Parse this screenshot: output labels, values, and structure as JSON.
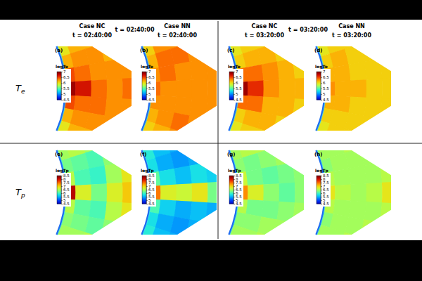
{
  "figure": {
    "row_labels": [
      {
        "symbol": "T",
        "subscript": "e"
      },
      {
        "symbol": "T",
        "subscript": "p"
      }
    ],
    "groups": [
      {
        "time_label": "t = 02:40:00",
        "columns": [
          {
            "case": "Case NC",
            "time": "t = 02:40:00"
          },
          {
            "case": "Case NN",
            "time": "t = 02:40:00"
          }
        ]
      },
      {
        "time_label": "t = 03:20:00",
        "columns": [
          {
            "case": "Case NC",
            "time": "t = 03:20:00"
          },
          {
            "case": "Case NN",
            "time": "t = 03:20:00"
          }
        ]
      }
    ]
  },
  "chart_data": [
    {
      "type": "heatmap",
      "title": "(a)",
      "colorbar": {
        "label": "logTe",
        "range": [
          4.5,
          7
        ],
        "ticks": [
          4.5,
          5,
          5.5,
          6,
          6.5,
          7
        ]
      },
      "values": [
        [
          6.0,
          6.2,
          6.2,
          6.3,
          6.2,
          6.2
        ],
        [
          6.2,
          6.3,
          6.3,
          6.2,
          6.3,
          6.2
        ],
        [
          6.5,
          6.4,
          6.3,
          6.3,
          6.3,
          6.2
        ],
        [
          6.9,
          6.7,
          6.4,
          6.3,
          6.4,
          6.3
        ],
        [
          6.5,
          6.4,
          6.4,
          6.3,
          6.3,
          6.2
        ],
        [
          6.2,
          6.3,
          6.3,
          6.3,
          6.2,
          6.2
        ],
        [
          6.0,
          6.2,
          6.2,
          6.2,
          6.2,
          6.1
        ]
      ]
    },
    {
      "type": "heatmap",
      "title": "(b)",
      "colorbar": {
        "label": "logTe",
        "range": [
          4.5,
          7
        ],
        "ticks": [
          4.5,
          5,
          5.5,
          6,
          6.5,
          7
        ]
      },
      "values": [
        [
          6.1,
          6.3,
          6.3,
          6.3,
          6.3,
          6.3
        ],
        [
          6.2,
          6.4,
          6.4,
          6.3,
          6.3,
          6.3
        ],
        [
          6.3,
          6.4,
          6.3,
          6.3,
          6.3,
          6.3
        ],
        [
          6.4,
          6.3,
          6.3,
          6.3,
          6.3,
          6.3
        ],
        [
          6.3,
          6.3,
          6.3,
          6.3,
          6.3,
          6.3
        ],
        [
          6.2,
          6.3,
          6.4,
          6.3,
          6.3,
          6.2
        ],
        [
          6.1,
          6.2,
          6.3,
          6.3,
          6.2,
          6.2
        ]
      ]
    },
    {
      "type": "heatmap",
      "title": "(c)",
      "colorbar": {
        "label": "logTe",
        "range": [
          4.5,
          7
        ],
        "ticks": [
          4.5,
          5,
          5.5,
          6,
          6.5,
          7
        ]
      },
      "values": [
        [
          6.0,
          6.1,
          6.1,
          6.1,
          6.1,
          6.1
        ],
        [
          6.1,
          6.2,
          6.2,
          6.1,
          6.1,
          6.1
        ],
        [
          6.4,
          6.4,
          6.3,
          6.2,
          6.1,
          6.1
        ],
        [
          6.9,
          6.6,
          6.3,
          6.2,
          6.2,
          6.1
        ],
        [
          6.4,
          6.4,
          6.2,
          6.2,
          6.1,
          6.1
        ],
        [
          6.1,
          6.2,
          6.2,
          6.1,
          6.1,
          6.1
        ],
        [
          6.0,
          6.1,
          6.1,
          6.1,
          6.1,
          6.0
        ]
      ]
    },
    {
      "type": "heatmap",
      "title": "(d)",
      "colorbar": {
        "label": "logTe",
        "range": [
          4.5,
          7
        ],
        "ticks": [
          4.5,
          5,
          5.5,
          6,
          6.5,
          7
        ]
      },
      "values": [
        [
          6.0,
          6.1,
          6.1,
          6.1,
          6.1,
          6.1
        ],
        [
          6.1,
          6.2,
          6.1,
          6.1,
          6.1,
          6.1
        ],
        [
          6.2,
          6.2,
          6.1,
          6.1,
          6.1,
          6.1
        ],
        [
          6.3,
          6.2,
          6.2,
          6.1,
          6.1,
          6.1
        ],
        [
          6.2,
          6.2,
          6.1,
          6.1,
          6.1,
          6.1
        ],
        [
          6.1,
          6.1,
          6.1,
          6.1,
          6.1,
          6.1
        ],
        [
          6.0,
          6.1,
          6.1,
          6.1,
          6.1,
          6.0
        ]
      ]
    },
    {
      "type": "heatmap",
      "title": "(e)",
      "colorbar": {
        "label": "logTp",
        "range": [
          4.5,
          8.5
        ],
        "ticks": [
          4.5,
          5,
          5.5,
          6,
          6.5,
          7,
          7.5,
          8,
          8.5
        ]
      },
      "values": [
        [
          6.5,
          6.6,
          6.5,
          6.6,
          6.6,
          6.5
        ],
        [
          6.3,
          6.2,
          6.1,
          6.4,
          6.6,
          6.5
        ],
        [
          6.6,
          6.1,
          6.0,
          6.5,
          6.9,
          6.8
        ],
        [
          8.2,
          6.8,
          6.3,
          6.8,
          7.1,
          6.9
        ],
        [
          6.6,
          6.2,
          6.1,
          6.6,
          6.9,
          6.7
        ],
        [
          6.4,
          6.3,
          6.2,
          6.4,
          6.6,
          6.5
        ],
        [
          6.5,
          6.5,
          6.6,
          6.6,
          6.6,
          6.5
        ]
      ]
    },
    {
      "type": "heatmap",
      "title": "(f)",
      "colorbar": {
        "label": "logTp",
        "range": [
          4.5,
          8.5
        ],
        "ticks": [
          4.5,
          5,
          5.5,
          6,
          6.5,
          7,
          7.5,
          8,
          8.5
        ]
      },
      "values": [
        [
          5.9,
          5.6,
          5.5,
          5.6,
          5.8,
          5.9
        ],
        [
          5.8,
          5.5,
          5.4,
          5.5,
          5.6,
          5.8
        ],
        [
          6.2,
          5.8,
          5.6,
          5.8,
          5.7,
          5.6
        ],
        [
          7.5,
          6.8,
          6.7,
          6.9,
          6.3,
          5.8
        ],
        [
          6.1,
          5.7,
          5.5,
          5.6,
          5.5,
          5.6
        ],
        [
          5.8,
          5.5,
          5.4,
          5.5,
          5.5,
          5.6
        ],
        [
          5.9,
          5.6,
          5.5,
          5.6,
          5.7,
          5.8
        ]
      ]
    },
    {
      "type": "heatmap",
      "title": "(g)",
      "colorbar": {
        "label": "logTp",
        "range": [
          4.5,
          8.5
        ],
        "ticks": [
          4.5,
          5,
          5.5,
          6,
          6.5,
          7,
          7.5,
          8,
          8.5
        ]
      },
      "values": [
        [
          6.5,
          6.6,
          6.6,
          6.6,
          6.6,
          6.6
        ],
        [
          6.4,
          6.3,
          6.4,
          6.5,
          6.6,
          6.6
        ],
        [
          6.7,
          6.3,
          6.2,
          6.3,
          6.4,
          6.5
        ],
        [
          7.4,
          6.8,
          6.4,
          6.2,
          6.4,
          6.6
        ],
        [
          6.6,
          6.3,
          6.3,
          6.4,
          6.5,
          6.6
        ],
        [
          6.4,
          6.4,
          6.5,
          6.5,
          6.6,
          6.6
        ],
        [
          6.5,
          6.5,
          6.6,
          6.6,
          6.6,
          6.5
        ]
      ]
    },
    {
      "type": "heatmap",
      "title": "(h)",
      "colorbar": {
        "label": "logTp",
        "range": [
          4.5,
          8.5
        ],
        "ticks": [
          4.5,
          5,
          5.5,
          6,
          6.5,
          7,
          7.5,
          8,
          8.5
        ]
      },
      "values": [
        [
          6.5,
          6.5,
          6.6,
          6.6,
          6.6,
          6.5
        ],
        [
          6.4,
          6.5,
          6.5,
          6.5,
          6.6,
          6.6
        ],
        [
          6.6,
          6.5,
          6.5,
          6.5,
          6.6,
          6.6
        ],
        [
          6.9,
          6.6,
          6.5,
          6.6,
          6.9,
          6.7
        ],
        [
          6.6,
          6.5,
          6.5,
          6.5,
          6.6,
          6.6
        ],
        [
          6.4,
          6.5,
          6.5,
          6.6,
          6.6,
          6.5
        ],
        [
          6.5,
          6.5,
          6.6,
          6.6,
          6.6,
          6.5
        ]
      ]
    }
  ]
}
